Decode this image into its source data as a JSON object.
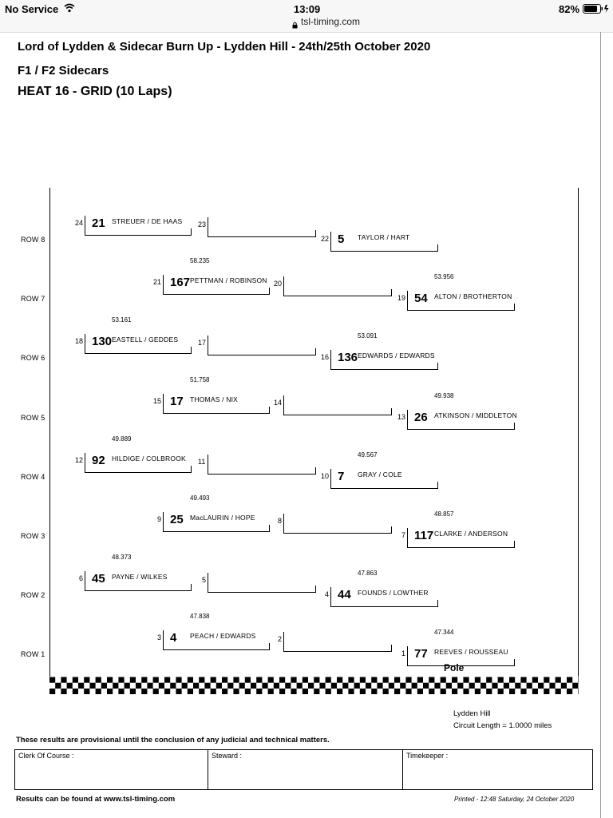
{
  "status_bar": {
    "carrier": "No Service",
    "time": "13:09",
    "battery": "82%",
    "url": "tsl-timing.com"
  },
  "header": {
    "event_title": "Lord of Lydden & Sidecar Burn Up - Lydden Hill - 24th/25th October 2020",
    "class_name": "F1 / F2 Sidecars",
    "session": "HEAT 16 - GRID (10 Laps)"
  },
  "grid": {
    "rows": [
      {
        "label": "ROW 8",
        "left": {
          "pos": "24",
          "car": "21",
          "names": "STREUER / DE HAAS",
          "time": ""
        },
        "middle": {
          "pos": "23",
          "car": "",
          "names": "",
          "time": ""
        },
        "right": {
          "pos": "22",
          "car": "5",
          "names": "TAYLOR / HART",
          "time": ""
        }
      },
      {
        "label": "ROW 7",
        "left": {
          "pos": "21",
          "car": "167",
          "names": "PETTMAN / ROBINSON",
          "time": "58.235"
        },
        "middle": {
          "pos": "20",
          "car": "",
          "names": "",
          "time": ""
        },
        "right": {
          "pos": "19",
          "car": "54",
          "names": "ALTON / BROTHERTON",
          "time": "53.956"
        }
      },
      {
        "label": "ROW 6",
        "left": {
          "pos": "18",
          "car": "130",
          "names": "EASTELL / GEDDES",
          "time": "53.161"
        },
        "middle": {
          "pos": "17",
          "car": "",
          "names": "",
          "time": ""
        },
        "right": {
          "pos": "16",
          "car": "136",
          "names": "EDWARDS / EDWARDS",
          "time": "53.091"
        }
      },
      {
        "label": "ROW 5",
        "left": {
          "pos": "15",
          "car": "17",
          "names": "THOMAS / NIX",
          "time": "51.758"
        },
        "middle": {
          "pos": "14",
          "car": "",
          "names": "",
          "time": ""
        },
        "right": {
          "pos": "13",
          "car": "26",
          "names": "ATKINSON / MIDDLETON",
          "time": "49.938"
        }
      },
      {
        "label": "ROW 4",
        "left": {
          "pos": "12",
          "car": "92",
          "names": "HILDIGE / COLBROOK",
          "time": "49.889"
        },
        "middle": {
          "pos": "11",
          "car": "",
          "names": "",
          "time": ""
        },
        "right": {
          "pos": "10",
          "car": "7",
          "names": "GRAY / COLE",
          "time": "49.567"
        }
      },
      {
        "label": "ROW 3",
        "left": {
          "pos": "9",
          "car": "25",
          "names": "MacLAURIN / HOPE",
          "time": "49.493"
        },
        "middle": {
          "pos": "8",
          "car": "",
          "names": "",
          "time": ""
        },
        "right": {
          "pos": "7",
          "car": "117",
          "names": "CLARKE / ANDERSON",
          "time": "48.857"
        }
      },
      {
        "label": "ROW 2",
        "left": {
          "pos": "6",
          "car": "45",
          "names": "PAYNE / WILKES",
          "time": "48.373"
        },
        "middle": {
          "pos": "5",
          "car": "",
          "names": "",
          "time": ""
        },
        "right": {
          "pos": "4",
          "car": "44",
          "names": "FOUNDS / LOWTHER",
          "time": "47.863"
        }
      },
      {
        "label": "ROW 1",
        "left": {
          "pos": "3",
          "car": "4",
          "names": "PEACH / EDWARDS",
          "time": "47.838"
        },
        "middle": {
          "pos": "2",
          "car": "",
          "names": "",
          "time": ""
        },
        "right": {
          "pos": "1",
          "car": "77",
          "names": "REEVES / ROUSSEAU",
          "time": "47.344"
        }
      }
    ],
    "pole_label": "Pole"
  },
  "circuit": {
    "name": "Lydden Hill",
    "length": "Circuit Length = 1.0000 miles"
  },
  "footer": {
    "provisional_note": "These results are provisional until the conclusion of any judicial and technical matters.",
    "clerk_label": "Clerk Of Course :",
    "steward_label": "Steward :",
    "timekeeper_label": "Timekeeper :",
    "results_link": "Results can be found at www.tsl-timing.com",
    "printed": "Printed - 12:48 Saturday, 24 October 2020"
  }
}
